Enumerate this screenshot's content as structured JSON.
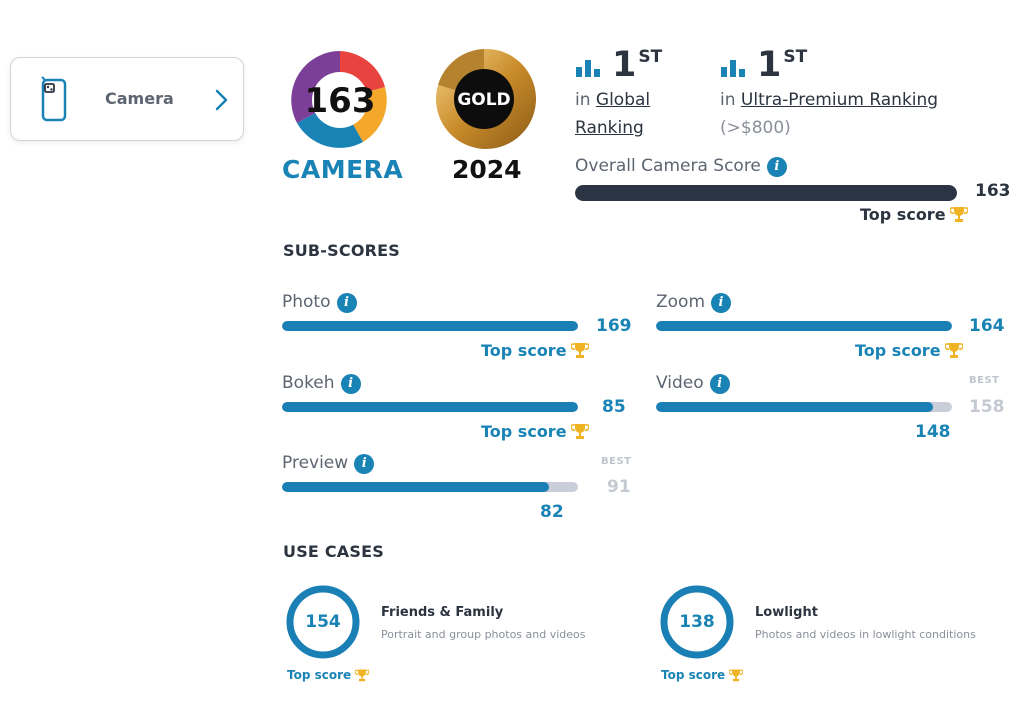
{
  "camera_card": {
    "label": "Camera"
  },
  "badge": {
    "score": "163",
    "brand": "CAMERA",
    "medal": "GOLD",
    "year": "2024"
  },
  "global_rank": {
    "number": "1",
    "suffix": "ST",
    "prefix": "in",
    "link": "Global",
    "link2": "Ranking"
  },
  "segment_rank": {
    "number": "1",
    "suffix": "ST",
    "prefix": "in",
    "link": "Ultra-Premium Ranking",
    "note": "(>$800)"
  },
  "overall": {
    "label": "Overall Camera Score",
    "value": "163",
    "fraction": 1.0,
    "top_score": "Top score"
  },
  "subscores": {
    "heading": "SUB-SCORES",
    "photo": {
      "label": "Photo",
      "value": "169",
      "fraction": 1.0,
      "top_score": "Top score"
    },
    "zoom": {
      "label": "Zoom",
      "value": "164",
      "fraction": 1.0,
      "top_score": "Top score"
    },
    "bokeh": {
      "label": "Bokeh",
      "value": "85",
      "fraction": 1.0,
      "top_score": "Top score"
    },
    "video": {
      "label": "Video",
      "value": "148",
      "best_label": "BEST",
      "best_value": "158",
      "fraction": 0.937
    },
    "preview": {
      "label": "Preview",
      "value": "82",
      "best_label": "BEST",
      "best_value": "91",
      "fraction": 0.901
    }
  },
  "use_cases": {
    "heading": "USE CASES",
    "friends": {
      "score": "154",
      "title": "Friends & Family",
      "desc": "Portrait and group photos and videos",
      "top_score": "Top score"
    },
    "lowlight": {
      "score": "138",
      "title": "Lowlight",
      "desc": "Photos and videos in lowlight conditions",
      "top_score": "Top score"
    }
  },
  "colors": {
    "accent": "#1a83b5",
    "bar_dark": "#2b3442",
    "bar_blue": "#1a7fb5",
    "track": "#c9ced8",
    "trophy": "#f0b323"
  },
  "icons": [
    "phone-camera-icon",
    "chevron-right-icon",
    "ranking-bars-icon",
    "info-icon",
    "trophy-icon"
  ]
}
